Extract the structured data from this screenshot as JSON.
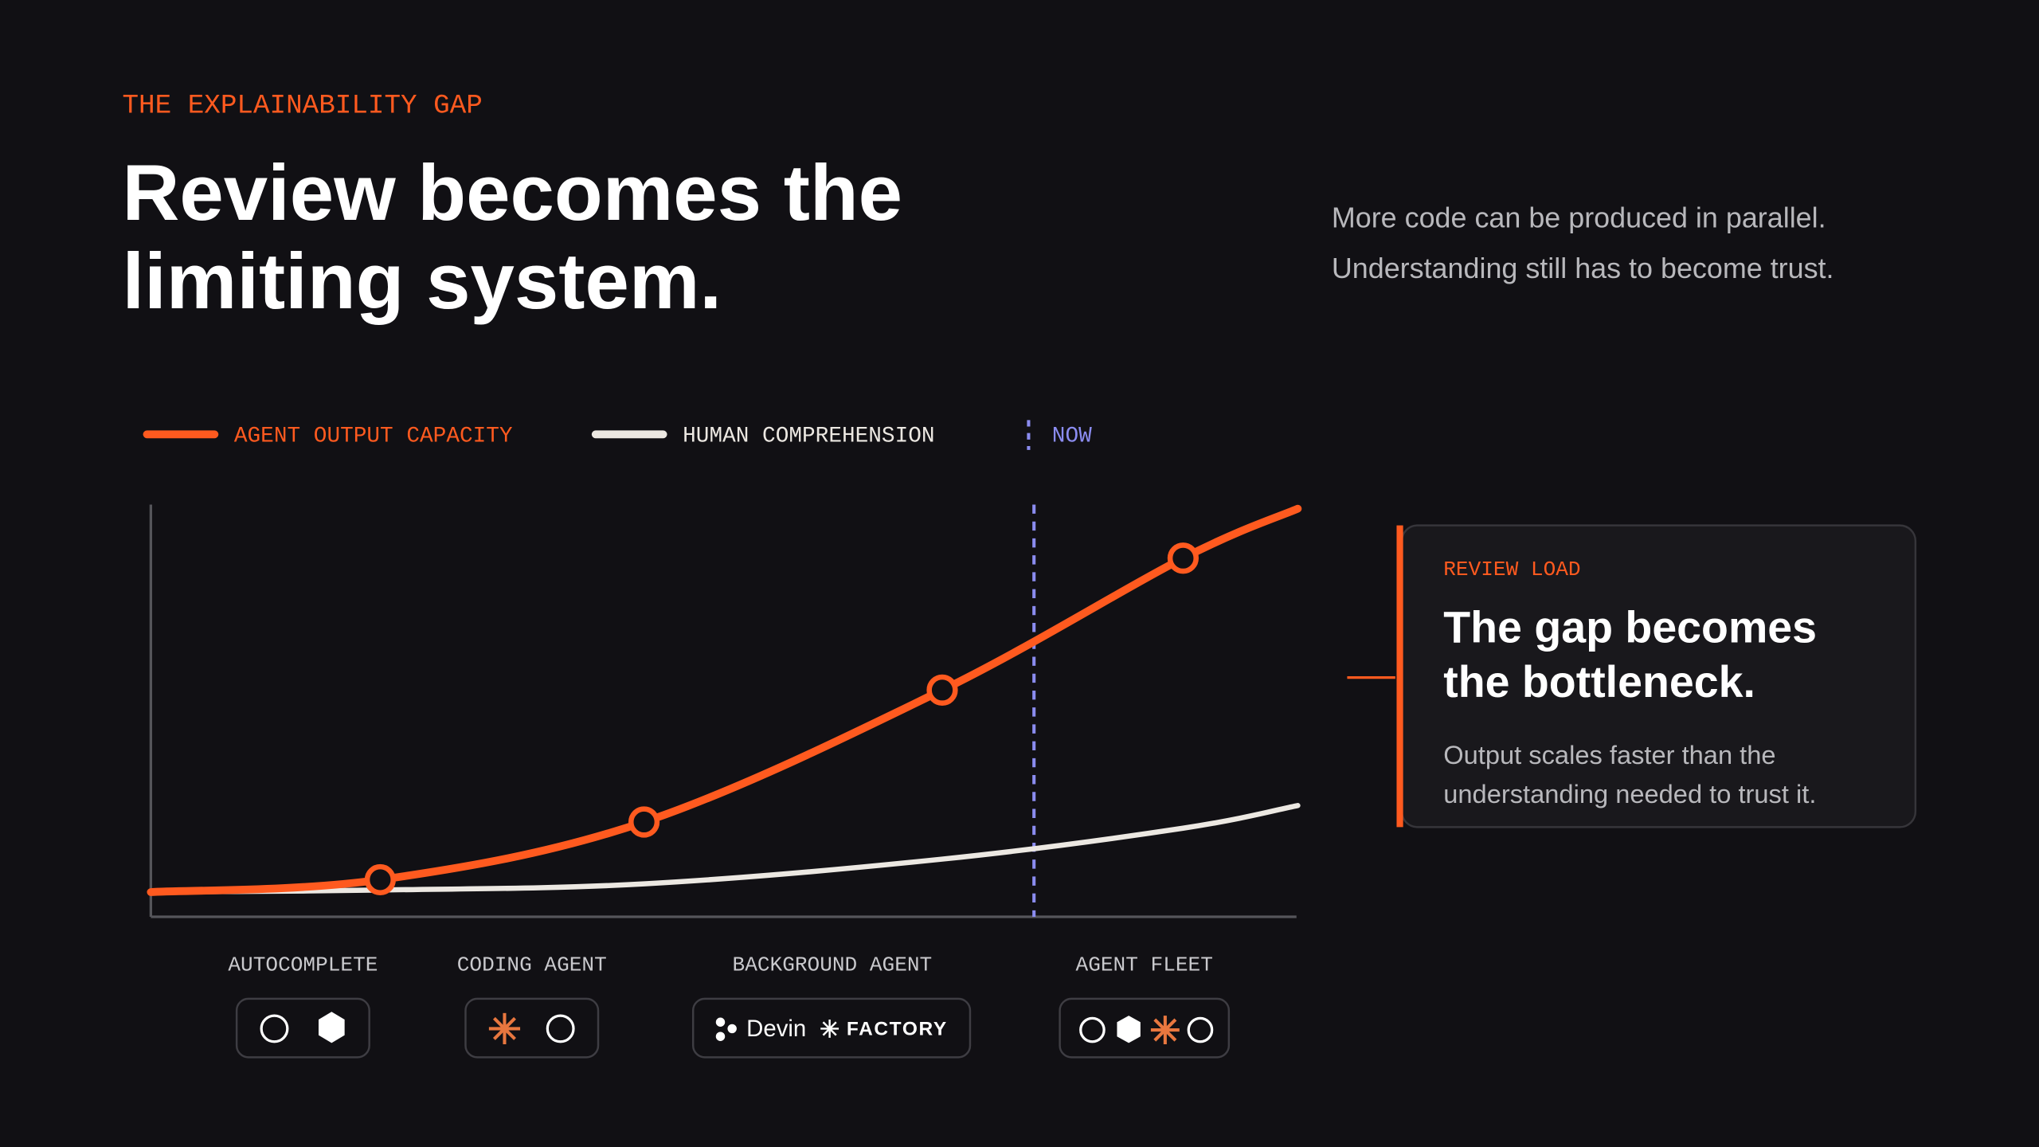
{
  "header": {
    "eyebrow": "THE EXPLAINABILITY GAP",
    "title": [
      "Review becomes the",
      "limiting system."
    ],
    "aside": [
      "More code can be produced in parallel.",
      "Understanding still has to become trust."
    ]
  },
  "chart_data": {
    "type": "line",
    "x": [
      0,
      20,
      43,
      69,
      90,
      100
    ],
    "xlim": [
      0,
      100
    ],
    "ylim": [
      0,
      100
    ],
    "series": [
      {
        "name": "AGENT OUTPUT CAPACITY",
        "color": "#ff5a1f",
        "values": [
          6,
          9,
          23,
          55,
          87,
          99
        ]
      },
      {
        "name": "HUMAN COMPREHENSION",
        "color": "#ece8e2",
        "values": [
          6,
          6.5,
          8,
          14,
          21.5,
          27
        ]
      }
    ],
    "now": {
      "label": "NOW",
      "x": 77,
      "color": "#8b8cf0"
    },
    "stages": [
      {
        "label": "AUTOCOMPLETE"
      },
      {
        "label": "CODING AGENT"
      },
      {
        "label": "BACKGROUND AGENT",
        "logos": [
          "Devin",
          "FACTORY"
        ]
      },
      {
        "label": "AGENT FLEET"
      }
    ]
  },
  "callout": {
    "eyebrow": "REVIEW LOAD",
    "title": [
      "The gap becomes",
      "the bottleneck."
    ],
    "body": [
      "Output scales faster than the",
      "understanding needed to trust it."
    ]
  }
}
